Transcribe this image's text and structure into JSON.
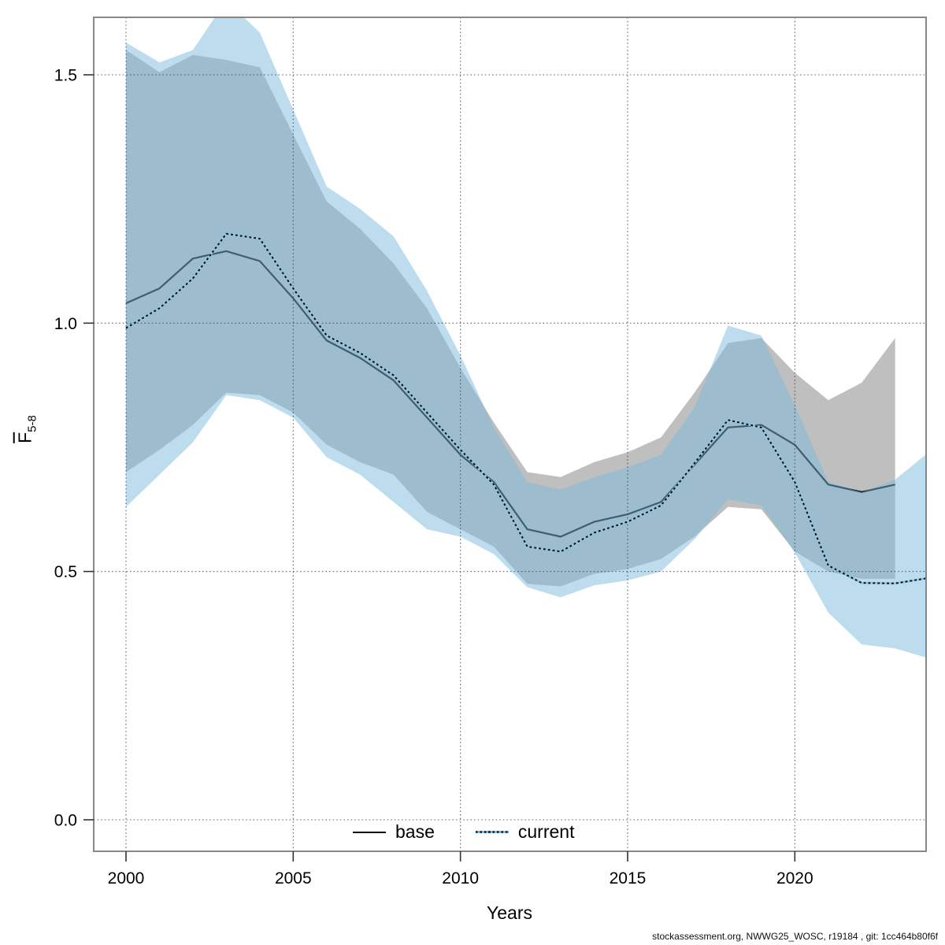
{
  "footer": "stockassessment.org, NWWG25_WOSC, r19184 , git: 1cc464b80f6f",
  "chart_data": {
    "type": "area",
    "title": "",
    "xlabel": "Years",
    "ylabel": {
      "main": "F",
      "sub": "5-8"
    },
    "x_tick_labels": [
      "2000",
      "2005",
      "2010",
      "2015",
      "2020"
    ],
    "x_tick_years": [
      2000,
      2005,
      2010,
      2015,
      2020
    ],
    "y_tick_labels": [
      "0.0",
      "0.5",
      "1.0",
      "1.5"
    ],
    "y_tick_values": [
      0.0,
      0.5,
      1.0,
      1.5
    ],
    "xlim": [
      1999.0,
      2023.9
    ],
    "ylim": [
      -0.063,
      1.614
    ],
    "grid": "dotted",
    "legend": {
      "position": "bottom-center",
      "entries": [
        {
          "label": "base",
          "style": "solid",
          "color": "#000000"
        },
        {
          "label": "current",
          "style": "dotted",
          "color": "#10415c"
        }
      ]
    },
    "colors": {
      "band_base": "#bfbfbf",
      "band_current": "#7bbbdd",
      "band_current_alpha": 0.5,
      "line_base": "#000000",
      "line_current_dash": "#0a0a0a",
      "line_current_halo": "#8ec6e3",
      "grid": "#333333",
      "frame": "#878787",
      "tick": "#333333"
    },
    "series": [
      {
        "name": "base",
        "years": [
          2000,
          2001,
          2002,
          2003,
          2004,
          2005,
          2006,
          2007,
          2008,
          2009,
          2010,
          2011,
          2012,
          2013,
          2014,
          2015,
          2016,
          2017,
          2018,
          2019,
          2020,
          2021,
          2022,
          2023
        ],
        "est": [
          1.04,
          1.07,
          1.13,
          1.145,
          1.125,
          1.05,
          0.965,
          0.93,
          0.885,
          0.81,
          0.735,
          0.68,
          0.585,
          0.57,
          0.6,
          0.615,
          0.64,
          0.715,
          0.79,
          0.795,
          0.755,
          0.675,
          0.66,
          0.675
        ],
        "hi": [
          1.55,
          1.505,
          1.54,
          1.53,
          1.515,
          1.38,
          1.245,
          1.19,
          1.12,
          1.03,
          0.91,
          0.8,
          0.7,
          0.69,
          0.72,
          0.74,
          0.77,
          0.86,
          0.96,
          0.97,
          0.9,
          0.845,
          0.88,
          0.97
        ],
        "lo": [
          0.7,
          0.745,
          0.795,
          0.86,
          0.855,
          0.82,
          0.755,
          0.72,
          0.695,
          0.62,
          0.585,
          0.55,
          0.475,
          0.47,
          0.495,
          0.505,
          0.525,
          0.57,
          0.63,
          0.625,
          0.54,
          0.5,
          0.485,
          0.485
        ]
      },
      {
        "name": "current",
        "years": [
          2000,
          2001,
          2002,
          2003,
          2004,
          2005,
          2006,
          2007,
          2008,
          2009,
          2010,
          2011,
          2012,
          2013,
          2014,
          2015,
          2016,
          2017,
          2018,
          2019,
          2020,
          2021,
          2022,
          2023,
          2024
        ],
        "est": [
          0.99,
          1.03,
          1.09,
          1.18,
          1.17,
          1.07,
          0.975,
          0.94,
          0.895,
          0.82,
          0.745,
          0.675,
          0.55,
          0.54,
          0.578,
          0.6,
          0.633,
          0.718,
          0.805,
          0.79,
          0.68,
          0.512,
          0.477,
          0.476,
          0.487
        ],
        "hi": [
          1.565,
          1.525,
          1.55,
          1.65,
          1.585,
          1.43,
          1.275,
          1.23,
          1.175,
          1.065,
          0.935,
          0.79,
          0.68,
          0.665,
          0.69,
          0.71,
          0.735,
          0.83,
          0.995,
          0.975,
          0.835,
          0.68,
          0.66,
          0.685,
          0.74
        ],
        "lo": [
          0.63,
          0.695,
          0.76,
          0.855,
          0.845,
          0.81,
          0.73,
          0.695,
          0.64,
          0.585,
          0.57,
          0.535,
          0.468,
          0.448,
          0.472,
          0.482,
          0.5,
          0.565,
          0.645,
          0.633,
          0.538,
          0.417,
          0.353,
          0.345,
          0.325
        ]
      }
    ]
  }
}
